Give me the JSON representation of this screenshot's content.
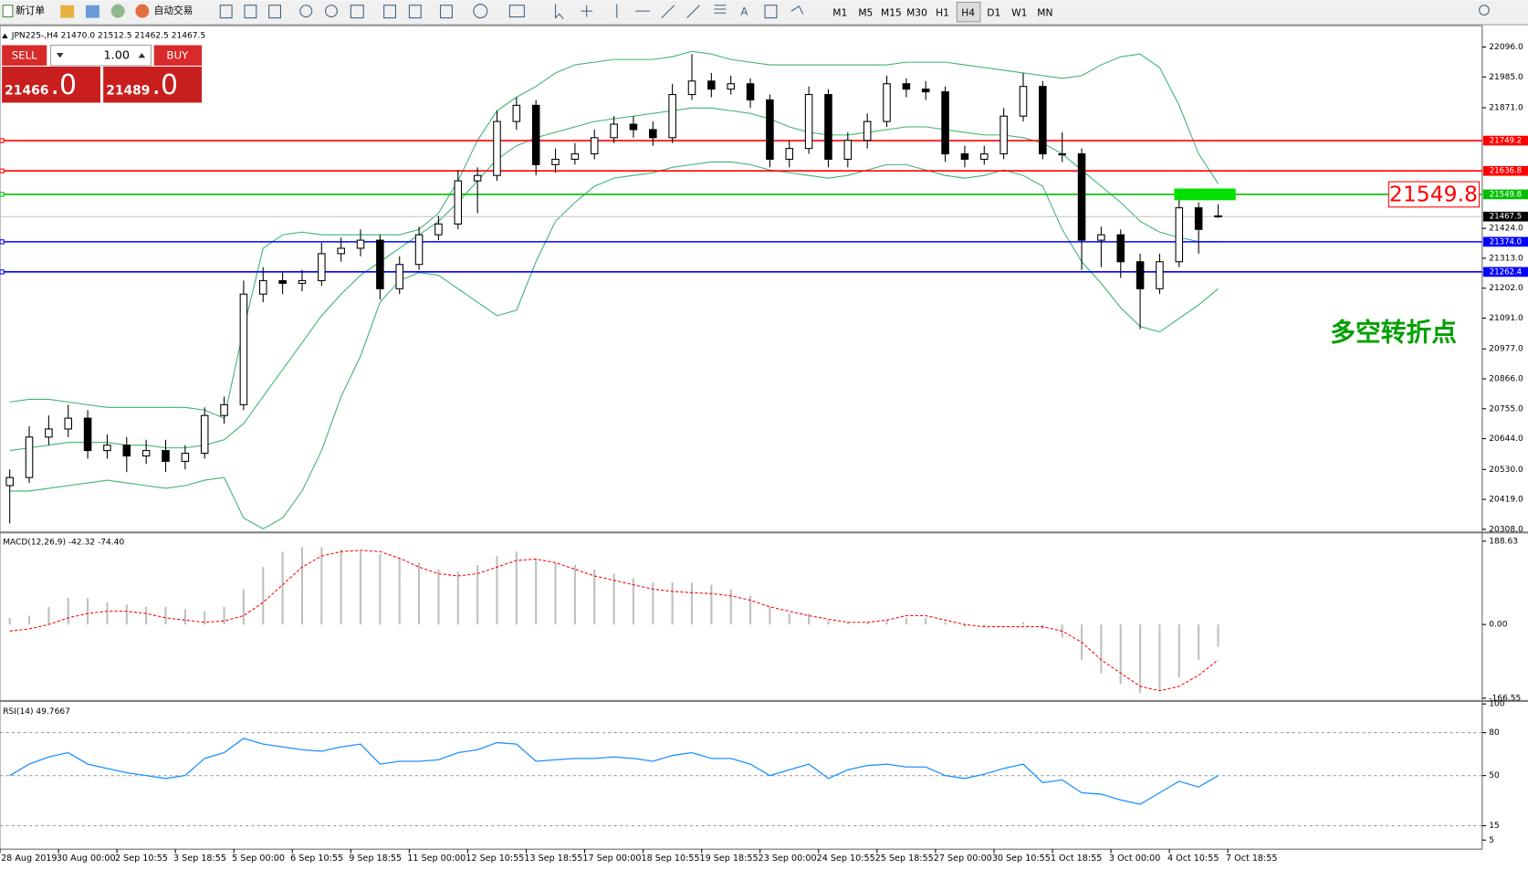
{
  "toolbar": {
    "new_order": "新订单",
    "auto_trade": "自动交易",
    "timeframes": [
      "M1",
      "M5",
      "M15",
      "M30",
      "H1",
      "H4",
      "D1",
      "W1",
      "MN"
    ]
  },
  "trade_panel": {
    "sell": "SELL",
    "buy": "BUY",
    "lot": "1.00",
    "sell_main": "21466",
    "sell_frac": ".0",
    "buy_main": "21489",
    "buy_frac": ".0"
  },
  "chart_data": [
    {
      "type": "candlestick",
      "title": "JPN225-,H4 21470.0 21512.5 21462.5 21467.5",
      "annotation": "多空转折点",
      "ylim": [
        20300,
        22168
      ],
      "yticks": [
        {
          "value": 22096,
          "label": "22096.0"
        },
        {
          "value": 21985,
          "label": "21985.0"
        },
        {
          "value": 21871,
          "label": "21871.0"
        },
        {
          "value": 21424,
          "label": "21424.0"
        },
        {
          "value": 21313,
          "label": "21313.0"
        },
        {
          "value": 21202,
          "label": "21202.0"
        },
        {
          "value": 21091,
          "label": "21091.0"
        },
        {
          "value": 20977,
          "label": "20977.0"
        },
        {
          "value": 20866,
          "label": "20866.0"
        },
        {
          "value": 20755,
          "label": "20755.0"
        },
        {
          "value": 20644,
          "label": "20644.0"
        },
        {
          "value": 20530,
          "label": "20530.0"
        },
        {
          "value": 20419,
          "label": "20419.0"
        },
        {
          "value": 20308,
          "label": "20308.0"
        }
      ],
      "levels": [
        {
          "value": 21749.2,
          "label": "21749.2",
          "color": "#ff0000"
        },
        {
          "value": 21636.8,
          "label": "21636.8",
          "color": "#ff0000"
        },
        {
          "value": 21549.8,
          "label": "21549.8",
          "color": "#00c000"
        },
        {
          "value": 21374,
          "label": "21374.0",
          "color": "#0000ff"
        },
        {
          "value": 21262.4,
          "label": "21262.4",
          "color": "#0000ff"
        }
      ],
      "last_price": {
        "value": 21467.5,
        "label": "21467.5"
      },
      "x_labels": [
        "28 Aug 2019",
        "30 Aug 00:00",
        "2 Sep 10:55",
        "3 Sep 18:55",
        "5 Sep 00:00",
        "6 Sep 10:55",
        "9 Sep 18:55",
        "11 Sep 00:00",
        "12 Sep 10:55",
        "13 Sep 18:55",
        "17 Sep 00:00",
        "18 Sep 10:55",
        "19 Sep 18:55",
        "23 Sep 00:00",
        "24 Sep 10:55",
        "25 Sep 18:55",
        "27 Sep 00:00",
        "30 Sep 10:55",
        "1 Oct 18:55",
        "3 Oct 00:00",
        "4 Oct 10:55",
        "7 Oct 18:55"
      ],
      "candles": [
        [
          20470,
          20530,
          20330,
          20500
        ],
        [
          20500,
          20690,
          20480,
          20650
        ],
        [
          20650,
          20730,
          20620,
          20680
        ],
        [
          20680,
          20770,
          20650,
          20720
        ],
        [
          20720,
          20750,
          20570,
          20600
        ],
        [
          20600,
          20660,
          20570,
          20620
        ],
        [
          20620,
          20650,
          20520,
          20580
        ],
        [
          20580,
          20640,
          20550,
          20600
        ],
        [
          20600,
          20640,
          20520,
          20560
        ],
        [
          20560,
          20620,
          20530,
          20590
        ],
        [
          20590,
          20760,
          20570,
          20730
        ],
        [
          20730,
          20800,
          20700,
          20770
        ],
        [
          20770,
          21230,
          20750,
          21180
        ],
        [
          21180,
          21280,
          21150,
          21230
        ],
        [
          21230,
          21260,
          21180,
          21220
        ],
        [
          21220,
          21270,
          21190,
          21230
        ],
        [
          21230,
          21370,
          21210,
          21330
        ],
        [
          21330,
          21390,
          21300,
          21350
        ],
        [
          21350,
          21420,
          21320,
          21380
        ],
        [
          21380,
          21400,
          21160,
          21200
        ],
        [
          21200,
          21320,
          21180,
          21290
        ],
        [
          21290,
          21430,
          21270,
          21400
        ],
        [
          21400,
          21470,
          21380,
          21440
        ],
        [
          21440,
          21640,
          21420,
          21600
        ],
        [
          21600,
          21650,
          21480,
          21620
        ],
        [
          21620,
          21860,
          21600,
          21820
        ],
        [
          21820,
          21910,
          21790,
          21880
        ],
        [
          21880,
          21900,
          21620,
          21660
        ],
        [
          21660,
          21720,
          21630,
          21680
        ],
        [
          21680,
          21740,
          21660,
          21700
        ],
        [
          21700,
          21790,
          21680,
          21760
        ],
        [
          21760,
          21840,
          21740,
          21810
        ],
        [
          21810,
          21840,
          21760,
          21790
        ],
        [
          21790,
          21820,
          21730,
          21760
        ],
        [
          21760,
          21960,
          21740,
          21920
        ],
        [
          21920,
          22070,
          21900,
          21970
        ],
        [
          21970,
          22000,
          21910,
          21940
        ],
        [
          21940,
          21990,
          21920,
          21960
        ],
        [
          21960,
          21980,
          21870,
          21900
        ],
        [
          21900,
          21920,
          21650,
          21680
        ],
        [
          21680,
          21750,
          21650,
          21720
        ],
        [
          21720,
          21950,
          21700,
          21920
        ],
        [
          21920,
          21940,
          21650,
          21680
        ],
        [
          21680,
          21780,
          21650,
          21750
        ],
        [
          21750,
          21850,
          21720,
          21820
        ],
        [
          21820,
          21990,
          21800,
          21960
        ],
        [
          21960,
          21980,
          21910,
          21940
        ],
        [
          21940,
          21970,
          21900,
          21930
        ],
        [
          21930,
          21950,
          21670,
          21700
        ],
        [
          21700,
          21730,
          21650,
          21680
        ],
        [
          21680,
          21730,
          21660,
          21700
        ],
        [
          21700,
          21870,
          21680,
          21840
        ],
        [
          21840,
          22000,
          21820,
          21950
        ],
        [
          21950,
          21970,
          21680,
          21700
        ],
        [
          21700,
          21780,
          21670,
          21700
        ],
        [
          21700,
          21720,
          21270,
          21380
        ],
        [
          21380,
          21430,
          21280,
          21400
        ],
        [
          21400,
          21420,
          21240,
          21300
        ],
        [
          21300,
          21330,
          21050,
          21200
        ],
        [
          21200,
          21330,
          21180,
          21300
        ],
        [
          21300,
          21540,
          21280,
          21500
        ],
        [
          21500,
          21520,
          21330,
          21420
        ],
        [
          21470,
          21512.5,
          21462.5,
          21467.5
        ]
      ],
      "bands": {
        "color": "#3cb371",
        "upper": [
          20780,
          20790,
          20790,
          20780,
          20770,
          20760,
          20760,
          20760,
          20760,
          20760,
          20750,
          20720,
          21050,
          21350,
          21400,
          21410,
          21400,
          21400,
          21400,
          21400,
          21400,
          21420,
          21480,
          21600,
          21750,
          21860,
          21910,
          21950,
          22000,
          22030,
          22040,
          22050,
          22050,
          22050,
          22060,
          22080,
          22070,
          22050,
          22040,
          22030,
          22030,
          22030,
          22030,
          22030,
          22030,
          22030,
          22040,
          22040,
          22040,
          22030,
          22020,
          22010,
          22000,
          21990,
          21980,
          21990,
          22030,
          22060,
          22070,
          22020,
          21880,
          21700,
          21590
        ],
        "middle": [
          20600,
          20610,
          20620,
          20630,
          20630,
          20630,
          20620,
          20620,
          20610,
          20610,
          20620,
          20640,
          20700,
          20800,
          20900,
          21000,
          21100,
          21180,
          21250,
          21300,
          21350,
          21400,
          21450,
          21520,
          21600,
          21680,
          21730,
          21760,
          21780,
          21800,
          21820,
          21830,
          21840,
          21850,
          21860,
          21870,
          21870,
          21860,
          21850,
          21830,
          21800,
          21780,
          21770,
          21770,
          21780,
          21790,
          21800,
          21800,
          21790,
          21780,
          21770,
          21770,
          21760,
          21740,
          21700,
          21640,
          21580,
          21520,
          21450,
          21410,
          21390,
          21375,
          21375
        ],
        "lower": [
          20450,
          20450,
          20460,
          20470,
          20480,
          20490,
          20480,
          20470,
          20460,
          20470,
          20490,
          20500,
          20350,
          20310,
          20350,
          20450,
          20600,
          20800,
          20950,
          21150,
          21230,
          21260,
          21250,
          21200,
          21150,
          21100,
          21120,
          21300,
          21450,
          21520,
          21580,
          21610,
          21620,
          21630,
          21650,
          21660,
          21670,
          21670,
          21660,
          21640,
          21630,
          21620,
          21610,
          21620,
          21640,
          21660,
          21660,
          21640,
          21620,
          21610,
          21620,
          21640,
          21620,
          21580,
          21420,
          21300,
          21220,
          21130,
          21060,
          21040,
          21090,
          21140,
          21200
        ]
      }
    },
    {
      "type": "macd",
      "title": "MACD(12,26,9) -42.32 -74.40",
      "ylim": [
        -171,
        204
      ],
      "yticks": [
        188.63,
        {
          "value": 0,
          "label": "0.00"
        },
        -166.55
      ],
      "color": "#c0c0c0",
      "signal_color": "#ff0000",
      "values": [
        15,
        20,
        40,
        60,
        60,
        50,
        45,
        40,
        40,
        35,
        30,
        40,
        80,
        130,
        165,
        175,
        175,
        170,
        165,
        160,
        150,
        140,
        125,
        120,
        135,
        155,
        165,
        150,
        140,
        135,
        125,
        115,
        105,
        95,
        95,
        95,
        90,
        80,
        65,
        40,
        25,
        25,
        10,
        5,
        5,
        10,
        15,
        15,
        5,
        -5,
        -5,
        0,
        5,
        -10,
        -30,
        -80,
        -110,
        -135,
        -155,
        -150,
        -120,
        -80,
        -50
      ],
      "signal": [
        -15,
        -10,
        0,
        15,
        25,
        30,
        30,
        25,
        15,
        10,
        5,
        8,
        20,
        50,
        90,
        130,
        155,
        165,
        168,
        165,
        150,
        130,
        115,
        110,
        115,
        130,
        145,
        148,
        140,
        125,
        110,
        100,
        90,
        80,
        75,
        72,
        70,
        65,
        55,
        40,
        30,
        20,
        12,
        5,
        5,
        10,
        20,
        20,
        10,
        0,
        -5,
        -5,
        -5,
        -5,
        -15,
        -40,
        -80,
        -110,
        -140,
        -150,
        -140,
        -115,
        -80
      ]
    },
    {
      "type": "line",
      "title": "RSI(14) 49.7667",
      "ylim": [
        0,
        100
      ],
      "yticks": [
        100,
        80,
        50,
        15,
        5
      ],
      "levels": [
        80,
        50,
        15
      ],
      "color": "#1e90ff",
      "values": [
        50,
        58,
        63,
        66,
        58,
        55,
        52,
        50,
        48,
        50,
        62,
        66,
        76,
        72,
        70,
        68,
        67,
        70,
        72,
        58,
        60,
        60,
        61,
        66,
        68,
        73,
        72,
        60,
        61,
        62,
        62,
        63,
        62,
        60,
        64,
        66,
        62,
        62,
        58,
        50,
        54,
        58,
        48,
        54,
        57,
        58,
        56,
        56,
        50,
        48,
        51,
        55,
        58,
        45,
        47,
        38,
        37,
        33,
        30,
        38,
        46,
        42,
        50
      ]
    }
  ]
}
